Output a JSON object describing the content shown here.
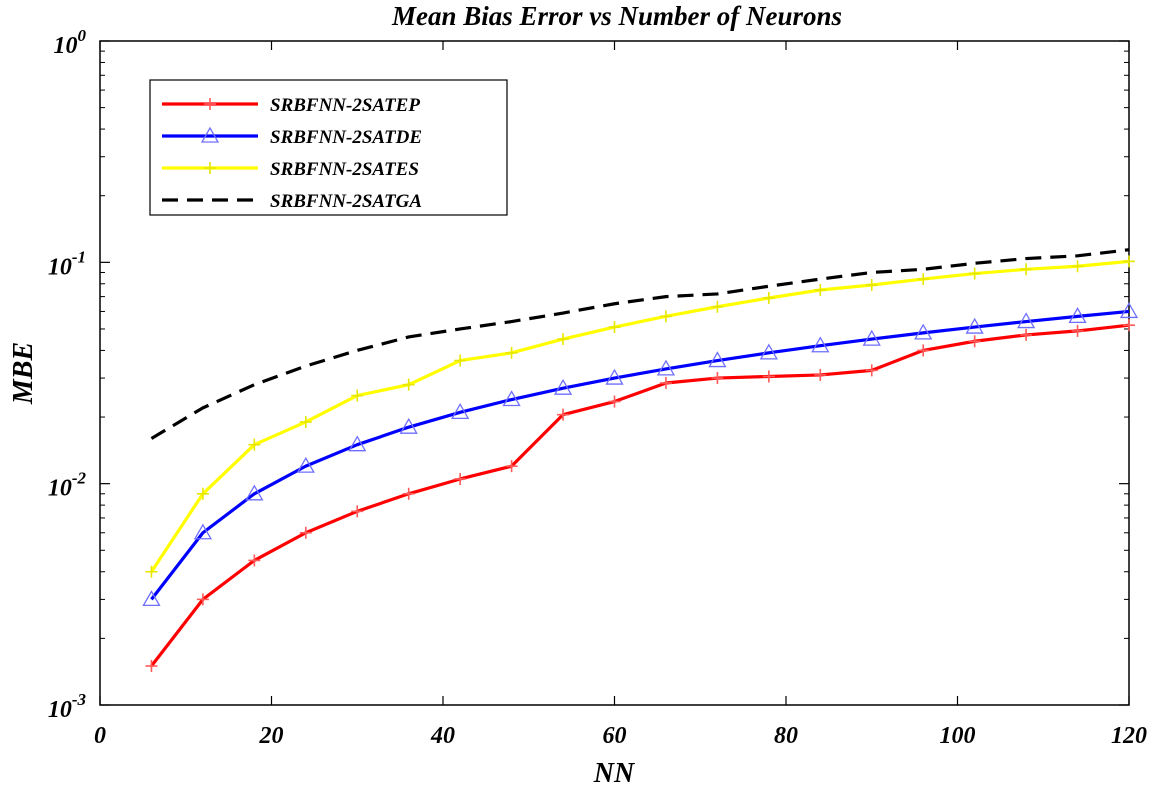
{
  "chart_data": {
    "type": "line",
    "title": "Mean Bias Error vs Number of Neurons",
    "xlabel": "NN",
    "ylabel": "MBE",
    "xlim": [
      0,
      120
    ],
    "ylim": [
      0.001,
      1
    ],
    "yscale": "log",
    "grid": false,
    "legend_position": "top-left",
    "x_ticks": [
      {
        "value": 0,
        "label": "0"
      },
      {
        "value": 20,
        "label": "20"
      },
      {
        "value": 40,
        "label": "40"
      },
      {
        "value": 60,
        "label": "60"
      },
      {
        "value": 80,
        "label": "80"
      },
      {
        "value": 100,
        "label": "100"
      },
      {
        "value": 120,
        "label": "120"
      }
    ],
    "y_ticks": [
      {
        "value": 0.001,
        "base": "10",
        "exp": "-3"
      },
      {
        "value": 0.01,
        "base": "10",
        "exp": "-2"
      },
      {
        "value": 0.1,
        "base": "10",
        "exp": "-1"
      },
      {
        "value": 1,
        "base": "10",
        "exp": "0"
      }
    ],
    "series": [
      {
        "name": "SRBFNN-2SATEP",
        "color": "#ff0000",
        "marker": "plus",
        "dash": "solid",
        "x": [
          6,
          12,
          18,
          24,
          30,
          36,
          42,
          48,
          54,
          60,
          66,
          72,
          78,
          84,
          90,
          96,
          102,
          108,
          114,
          120
        ],
        "values": [
          0.0015,
          0.003,
          0.0045,
          0.006,
          0.0075,
          0.009,
          0.0105,
          0.012,
          0.0205,
          0.0235,
          0.0285,
          0.03,
          0.0305,
          0.031,
          0.0325,
          0.04,
          0.044,
          0.047,
          0.049,
          0.052
        ]
      },
      {
        "name": "SRBFNN-2SATDE",
        "color": "#0000ff",
        "marker": "triangle",
        "dash": "solid",
        "x": [
          6,
          12,
          18,
          24,
          30,
          36,
          42,
          48,
          54,
          60,
          66,
          72,
          78,
          84,
          90,
          96,
          102,
          108,
          114,
          120
        ],
        "values": [
          0.003,
          0.006,
          0.009,
          0.012,
          0.015,
          0.018,
          0.021,
          0.024,
          0.027,
          0.03,
          0.033,
          0.036,
          0.039,
          0.042,
          0.045,
          0.048,
          0.051,
          0.054,
          0.057,
          0.06
        ]
      },
      {
        "name": "SRBFNN-2SATES",
        "color": "#ffff00",
        "marker": "plus",
        "dash": "solid",
        "x": [
          6,
          12,
          18,
          24,
          30,
          36,
          42,
          48,
          54,
          60,
          66,
          72,
          78,
          84,
          90,
          96,
          102,
          108,
          114,
          120
        ],
        "values": [
          0.004,
          0.009,
          0.015,
          0.019,
          0.025,
          0.028,
          0.036,
          0.039,
          0.045,
          0.051,
          0.057,
          0.063,
          0.069,
          0.075,
          0.079,
          0.084,
          0.089,
          0.093,
          0.096,
          0.101
        ]
      },
      {
        "name": "SRBFNN-2SATGA",
        "color": "#000000",
        "marker": "none",
        "dash": "dashed",
        "x": [
          6,
          12,
          18,
          24,
          30,
          36,
          42,
          48,
          54,
          60,
          66,
          72,
          78,
          84,
          90,
          96,
          102,
          108,
          114,
          120
        ],
        "values": [
          0.016,
          0.022,
          0.028,
          0.034,
          0.04,
          0.046,
          0.05,
          0.054,
          0.059,
          0.065,
          0.07,
          0.072,
          0.078,
          0.084,
          0.09,
          0.093,
          0.099,
          0.104,
          0.107,
          0.114
        ]
      }
    ]
  }
}
